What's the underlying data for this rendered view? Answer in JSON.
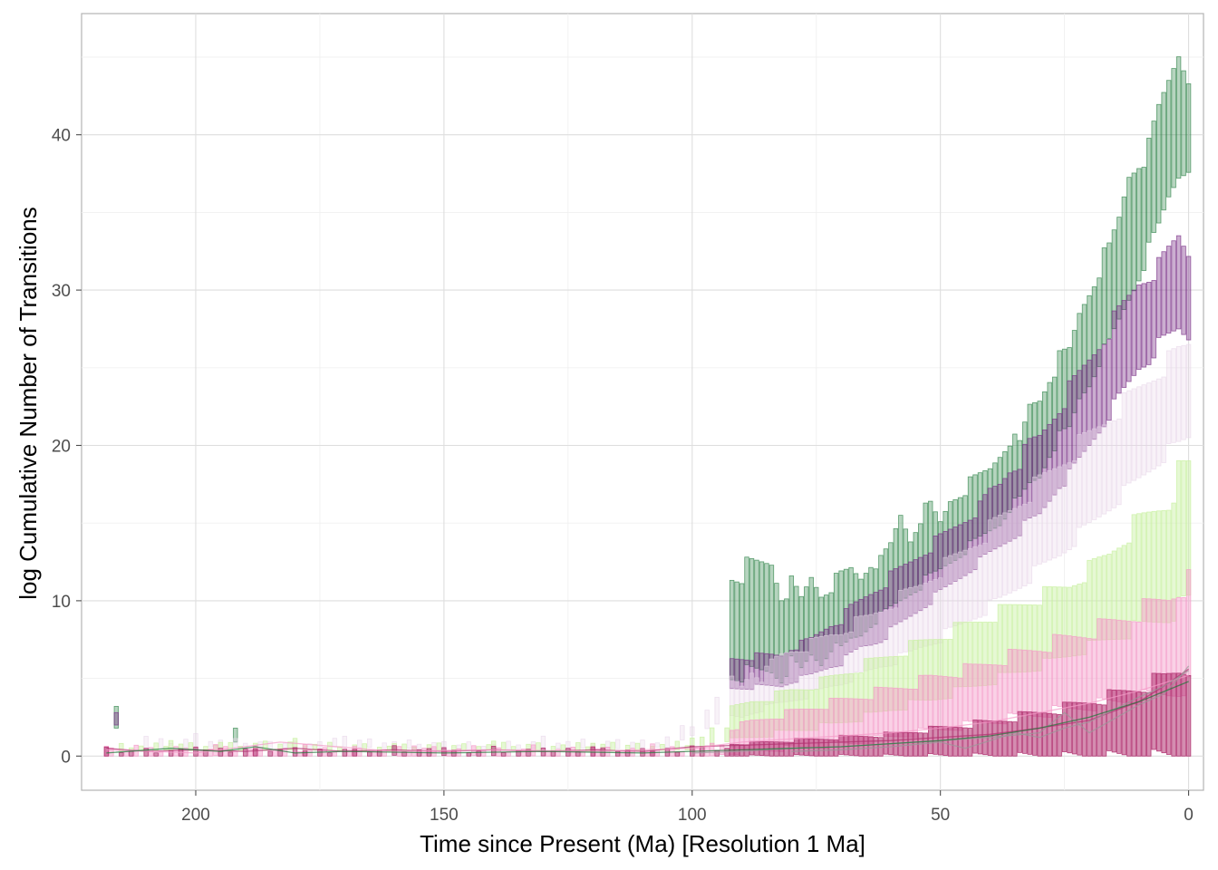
{
  "chart_data": {
    "type": "bar",
    "title": "",
    "xlabel": "Time since Present (Ma) [Resolution 1 Ma]",
    "ylabel": "log Cumulative Number of Transitions",
    "x_reversed": true,
    "xlim": [
      223,
      -3
    ],
    "ylim": [
      -2.2,
      47.8
    ],
    "x_ticks": [
      200,
      150,
      100,
      50,
      0
    ],
    "y_ticks": [
      0,
      10,
      20,
      30,
      40
    ],
    "grid": true,
    "legend": "none",
    "colors": {
      "green": "#1b7837",
      "purple": "#762a83",
      "lavender": "#e7d4e8",
      "lightgreen": "#c8f0a0",
      "pink": "#f49ac8",
      "magenta": "#b0306f",
      "grey": "#999999"
    },
    "series": [
      {
        "color": "green",
        "x": [
          216,
          192,
          84,
          82,
          80,
          78,
          76,
          74,
          72,
          70,
          68,
          66,
          64,
          62,
          60,
          58,
          56,
          54,
          52,
          50,
          48,
          46,
          44,
          42,
          40,
          38,
          36,
          34,
          32,
          30,
          28,
          26,
          24,
          22,
          20,
          18,
          16,
          14,
          12,
          10,
          8,
          6,
          4,
          2,
          0
        ],
        "ymin": [
          1.8,
          0.9,
          5.5,
          5.0,
          6.0,
          5.5,
          6.5,
          6.0,
          7.0,
          6.8,
          7.5,
          7.8,
          8.5,
          9.0,
          9.5,
          10.0,
          10.5,
          11.0,
          11.5,
          12.0,
          12.5,
          13.0,
          13.5,
          14.0,
          14.5,
          15.0,
          16.0,
          16.5,
          17.5,
          18.0,
          19.5,
          20.5,
          21.0,
          23.0,
          24.0,
          25.5,
          26.5,
          28.0,
          29.5,
          31.0,
          32.5,
          34.0,
          36.0,
          37.5,
          38.0
        ],
        "ymax": [
          3.2,
          1.8,
          12.5,
          10.5,
          11.0,
          10.0,
          11.5,
          10.5,
          11.0,
          11.5,
          12.0,
          11.5,
          12.5,
          12.5,
          13.5,
          15.5,
          14.0,
          15.5,
          16.0,
          15.0,
          16.5,
          17.0,
          17.5,
          18.0,
          18.5,
          19.5,
          20.5,
          20.0,
          22.5,
          23.0,
          24.5,
          25.5,
          26.0,
          28.5,
          30.0,
          31.5,
          32.5,
          34.5,
          37.5,
          38.5,
          39.0,
          41.5,
          43.5,
          45.5,
          44.0
        ]
      },
      {
        "color": "purple",
        "x": [
          216,
          84,
          82,
          80,
          78,
          76,
          74,
          72,
          70,
          68,
          66,
          64,
          62,
          60,
          58,
          56,
          54,
          52,
          50,
          48,
          46,
          44,
          42,
          40,
          38,
          36,
          34,
          32,
          30,
          28,
          26,
          24,
          22,
          20,
          18,
          16,
          14,
          12,
          10,
          8,
          6,
          4,
          2,
          0
        ],
        "ymin": [
          2.0,
          4.5,
          4.5,
          4.8,
          5.0,
          5.2,
          5.5,
          5.8,
          6.0,
          6.5,
          7.0,
          7.2,
          7.5,
          8.0,
          8.5,
          9.0,
          9.5,
          10.0,
          10.5,
          11.0,
          11.5,
          12.0,
          12.5,
          13.0,
          13.5,
          14.0,
          14.5,
          15.0,
          15.5,
          16.5,
          17.5,
          18.0,
          19.0,
          20.0,
          21.0,
          22.0,
          23.0,
          24.0,
          25.0,
          25.5,
          26.5,
          27.0,
          27.5,
          27.0
        ],
        "ymax": [
          2.8,
          6.5,
          6.5,
          7.0,
          7.2,
          7.5,
          8.0,
          8.5,
          8.8,
          9.5,
          10.0,
          10.5,
          11.0,
          11.5,
          12.0,
          12.5,
          13.0,
          13.5,
          14.0,
          14.5,
          15.0,
          15.5,
          16.0,
          17.0,
          17.5,
          18.5,
          19.0,
          20.0,
          20.5,
          21.5,
          22.5,
          23.5,
          24.5,
          25.5,
          26.5,
          27.5,
          28.5,
          29.5,
          30.5,
          31.0,
          31.5,
          32.5,
          33.5,
          32.5
        ]
      },
      {
        "color": "lavender",
        "x": [
          210,
          200,
          185,
          170,
          145,
          130,
          115,
          105,
          92,
          90,
          88,
          86,
          84,
          82,
          80,
          78,
          76,
          74,
          72,
          70,
          68,
          66,
          64,
          62,
          60,
          58,
          56,
          54,
          52,
          50,
          48,
          46,
          44,
          42,
          40,
          38,
          36,
          34,
          32,
          30,
          28,
          26,
          24,
          22,
          20,
          18,
          16,
          14,
          12,
          10,
          8,
          6,
          4,
          2,
          0
        ],
        "ymin": [
          0.4,
          0.6,
          0.5,
          0.6,
          0.4,
          0.5,
          0.5,
          0.6,
          2.5,
          2.5,
          2.8,
          3.0,
          3.2,
          3.4,
          3.6,
          3.8,
          4.0,
          4.2,
          4.5,
          4.7,
          5.0,
          5.2,
          5.5,
          5.8,
          6.0,
          6.3,
          6.6,
          7.0,
          7.3,
          7.6,
          8.0,
          8.4,
          8.8,
          9.2,
          9.6,
          10.0,
          10.5,
          11.0,
          11.5,
          12.0,
          12.5,
          13.0,
          13.6,
          14.2,
          14.8,
          15.4,
          16.0,
          16.6,
          17.2,
          17.8,
          18.4,
          19.0,
          19.6,
          20.0,
          20.5
        ],
        "ymax": [
          1.2,
          1.4,
          1.0,
          1.3,
          0.9,
          1.2,
          1.1,
          1.3,
          5.0,
          4.5,
          5.5,
          5.0,
          6.0,
          6.5,
          6.8,
          7.0,
          7.2,
          7.5,
          7.8,
          8.0,
          8.4,
          8.7,
          9.0,
          9.4,
          9.8,
          10.2,
          10.6,
          11.0,
          11.5,
          12.0,
          12.5,
          13.0,
          13.5,
          14.0,
          14.6,
          15.2,
          15.8,
          16.4,
          17.0,
          17.6,
          18.2,
          18.8,
          19.4,
          20.0,
          20.6,
          21.2,
          21.8,
          22.4,
          23.0,
          23.6,
          24.2,
          24.8,
          25.4,
          26.0,
          26.5
        ]
      },
      {
        "color": "lightgreen",
        "x": [
          215,
          205,
          195,
          180,
          160,
          140,
          120,
          100,
          92,
          88,
          84,
          80,
          76,
          72,
          68,
          64,
          60,
          56,
          52,
          48,
          44,
          40,
          36,
          32,
          28,
          24,
          20,
          16,
          12,
          8,
          4,
          2,
          0
        ],
        "ymin": [
          0.3,
          0.4,
          0.3,
          0.4,
          0.3,
          0.4,
          0.3,
          0.4,
          1.0,
          1.2,
          1.4,
          1.6,
          1.8,
          2.0,
          2.3,
          2.6,
          3.0,
          3.3,
          3.6,
          4.0,
          4.4,
          4.8,
          5.2,
          5.6,
          6.0,
          6.5,
          7.0,
          7.5,
          8.0,
          8.5,
          9.0,
          9.5,
          10.0
        ],
        "ymax": [
          0.8,
          1.0,
          0.9,
          1.1,
          0.8,
          1.0,
          0.9,
          1.1,
          3.0,
          3.5,
          3.8,
          4.2,
          4.5,
          5.0,
          5.5,
          6.0,
          6.5,
          7.0,
          7.5,
          8.0,
          8.5,
          9.0,
          9.5,
          10.0,
          10.5,
          11.0,
          12.0,
          13.0,
          14.5,
          15.5,
          16.5,
          18.0,
          18.5
        ]
      },
      {
        "color": "pink",
        "x": [
          218,
          212,
          204,
          196,
          188,
          178,
          168,
          156,
          144,
          132,
          120,
          108,
          96,
          92,
          88,
          84,
          80,
          76,
          72,
          68,
          64,
          60,
          56,
          52,
          48,
          44,
          40,
          36,
          32,
          28,
          24,
          20,
          16,
          12,
          8,
          4,
          2,
          0
        ],
        "ymin": [
          0.0,
          0.0,
          0.0,
          0.0,
          0.0,
          0.0,
          0.0,
          0.0,
          0.0,
          0.0,
          0.0,
          0.0,
          0.0,
          0.2,
          0.3,
          0.4,
          0.5,
          0.6,
          0.7,
          0.8,
          1.0,
          1.2,
          1.4,
          1.6,
          1.8,
          2.0,
          2.2,
          2.4,
          2.6,
          2.8,
          3.0,
          3.2,
          3.4,
          3.6,
          3.8,
          4.0,
          4.2,
          4.5
        ],
        "ymax": [
          0.7,
          0.7,
          0.6,
          0.7,
          0.6,
          0.7,
          0.6,
          0.7,
          0.6,
          0.7,
          0.6,
          0.7,
          0.8,
          1.8,
          2.2,
          2.5,
          2.8,
          3.1,
          3.4,
          3.7,
          4.0,
          4.3,
          4.6,
          5.0,
          5.3,
          5.6,
          6.0,
          6.4,
          6.8,
          7.2,
          7.6,
          8.0,
          8.5,
          9.0,
          9.6,
          10.2,
          10.8,
          11.2
        ]
      },
      {
        "color": "magenta",
        "x": [
          218,
          210,
          200,
          190,
          180,
          170,
          160,
          150,
          140,
          130,
          120,
          110,
          100,
          90,
          85,
          80,
          75,
          70,
          65,
          60,
          55,
          50,
          45,
          40,
          35,
          30,
          25,
          20,
          15,
          10,
          5,
          2,
          0
        ],
        "ymin": [
          0,
          0,
          0,
          0,
          0,
          0,
          0,
          0,
          0,
          0,
          0,
          0,
          0,
          0,
          0,
          0,
          0,
          0,
          0,
          0,
          0,
          0,
          0,
          0,
          0,
          0,
          0,
          0,
          0,
          0,
          0,
          0,
          0
        ],
        "ymax": [
          0.6,
          0.5,
          0.6,
          0.5,
          0.6,
          0.5,
          0.6,
          0.5,
          0.6,
          0.5,
          0.6,
          0.5,
          0.7,
          0.8,
          0.9,
          1.0,
          1.1,
          1.2,
          1.3,
          1.4,
          1.6,
          1.8,
          2.0,
          2.2,
          2.5,
          2.8,
          3.1,
          3.5,
          3.9,
          4.4,
          5.0,
          5.5,
          5.7
        ]
      }
    ],
    "lines": [
      {
        "color": "magenta",
        "x": [
          218,
          210,
          200,
          190,
          180,
          170,
          160,
          150,
          140,
          130,
          120,
          110,
          100,
          90,
          80,
          70,
          60,
          50,
          40,
          30,
          20,
          10,
          5,
          0
        ],
        "y": [
          0.5,
          0.3,
          0.4,
          0.3,
          0.5,
          0.3,
          0.4,
          0.3,
          0.4,
          0.3,
          0.4,
          0.3,
          0.6,
          0.7,
          0.8,
          0.9,
          1.0,
          1.2,
          1.4,
          1.8,
          2.3,
          3.5,
          4.5,
          5.6
        ]
      },
      {
        "color": "pink",
        "x": [
          218,
          200,
          183,
          160,
          140,
          120,
          100,
          90,
          80,
          70,
          60,
          50,
          40,
          30,
          20,
          10,
          0
        ],
        "y": [
          0.4,
          0.2,
          0.9,
          0.3,
          0.4,
          0.3,
          0.5,
          0.9,
          1.1,
          1.3,
          1.5,
          1.8,
          2.2,
          2.8,
          3.4,
          4.2,
          5.2
        ]
      },
      {
        "color": "grey",
        "x": [
          100,
          90,
          80,
          70,
          60,
          50,
          40,
          30,
          25,
          20,
          15,
          10,
          5,
          2,
          0
        ],
        "y": [
          0.2,
          0.3,
          0.5,
          0.6,
          0.8,
          1.0,
          1.2,
          1.5,
          2.8,
          1.5,
          2.4,
          3.3,
          4.0,
          5.0,
          5.8
        ]
      },
      {
        "color": "grey",
        "x": [
          80,
          70,
          60,
          50,
          45,
          40,
          35,
          30,
          25,
          20,
          15,
          10,
          5,
          0
        ],
        "y": [
          0.3,
          0.4,
          0.6,
          0.9,
          0.5,
          1.0,
          1.5,
          1.2,
          1.8,
          2.2,
          3.0,
          3.8,
          4.5,
          5.5
        ]
      },
      {
        "color": "green",
        "x": [
          218,
          205,
          195,
          188,
          180,
          170,
          150,
          130,
          110,
          100,
          90,
          80,
          70,
          60,
          50,
          40,
          30,
          20,
          10,
          0
        ],
        "y": [
          0.2,
          0.5,
          0.3,
          0.6,
          0.2,
          0.3,
          0.2,
          0.3,
          0.2,
          0.3,
          0.4,
          0.5,
          0.6,
          0.8,
          1.0,
          1.3,
          1.8,
          2.5,
          3.5,
          4.8
        ]
      }
    ]
  }
}
